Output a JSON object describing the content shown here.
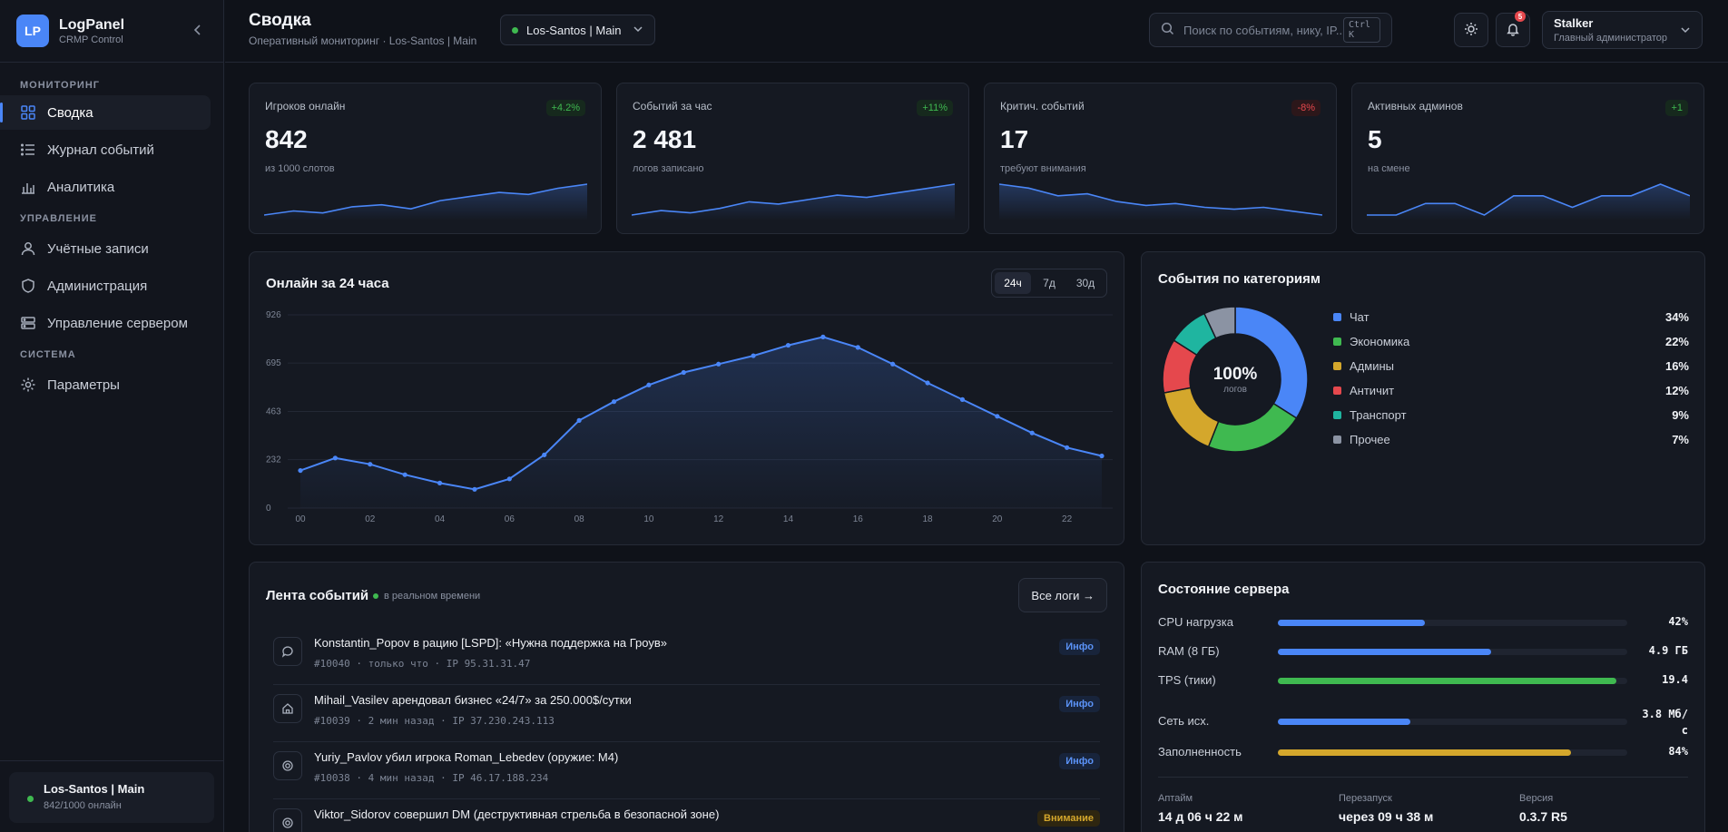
{
  "brand": {
    "logo": "LP",
    "name": "LogPanel",
    "sub": "CRMP Control"
  },
  "nav": {
    "sections": [
      {
        "title": "МОНИТОРИНГ",
        "items": [
          {
            "label": "Сводка",
            "icon": "grid-icon"
          },
          {
            "label": "Журнал событий",
            "icon": "list-icon"
          },
          {
            "label": "Аналитика",
            "icon": "bar-chart-icon"
          }
        ]
      },
      {
        "title": "УПРАВЛЕНИЕ",
        "items": [
          {
            "label": "Учётные записи",
            "icon": "user-icon"
          },
          {
            "label": "Администрация",
            "icon": "shield-icon"
          },
          {
            "label": "Управление сервером",
            "icon": "server-icon"
          }
        ]
      },
      {
        "title": "СИСТЕМА",
        "items": [
          {
            "label": "Параметры",
            "icon": "gear-icon"
          }
        ]
      }
    ]
  },
  "server_card": {
    "name": "Los-Santos | Main",
    "sub": "842/1000 онлайн"
  },
  "header": {
    "title": "Сводка",
    "subtitle": "Оперативный мониторинг · Los-Santos | Main",
    "server_select": "Los-Santos | Main",
    "search_placeholder": "Поиск по событиям, нику, IP...",
    "search_kbd": "Ctrl K",
    "notif_count": "5",
    "user": {
      "name": "Stalker",
      "role": "Главный администратор"
    }
  },
  "stats": [
    {
      "label": "Игроков онлайн",
      "value": "842",
      "sub": "из 1000 слотов",
      "change": "+4.2%",
      "trend": "up",
      "spark": [
        3,
        5,
        4,
        7,
        8,
        6,
        10,
        12,
        14,
        13,
        16,
        18
      ]
    },
    {
      "label": "Событий за час",
      "value": "2 481",
      "sub": "логов записано",
      "change": "+11%",
      "trend": "up",
      "spark": [
        3,
        5,
        4,
        6,
        9,
        8,
        10,
        12,
        11,
        13,
        15,
        17
      ]
    },
    {
      "label": "Критич. событий",
      "value": "17",
      "sub": "требуют внимания",
      "change": "-8%",
      "trend": "down",
      "spark": [
        18,
        16,
        12,
        13,
        9,
        7,
        8,
        6,
        5,
        6,
        4,
        2
      ]
    },
    {
      "label": "Активных админов",
      "value": "5",
      "sub": "на смене",
      "change": "+1",
      "trend": "up",
      "spark": [
        2,
        2,
        5,
        5,
        2,
        7,
        7,
        4,
        7,
        7,
        10,
        7
      ]
    }
  ],
  "online_chart": {
    "title": "Онлайн за 24 часа",
    "tabs": [
      "24ч",
      "7д",
      "30д"
    ],
    "active_tab": "24ч"
  },
  "chart_data": {
    "type": "area",
    "title": "Онлайн за 24 часа",
    "x": [
      0,
      1,
      2,
      3,
      4,
      5,
      6,
      7,
      8,
      9,
      10,
      11,
      12,
      13,
      14,
      15,
      16,
      17,
      18,
      19,
      20,
      21,
      22,
      23
    ],
    "xticks": [
      "00",
      "02",
      "04",
      "06",
      "08",
      "10",
      "12",
      "14",
      "16",
      "18",
      "20",
      "22"
    ],
    "series": [
      {
        "values": [
          180,
          240,
          210,
          160,
          120,
          90,
          140,
          255,
          420,
          510,
          590,
          650,
          690,
          730,
          780,
          820,
          770,
          690,
          600,
          520,
          440,
          360,
          290,
          250
        ]
      }
    ],
    "yticks": [
      0,
      232,
      463,
      695,
      926
    ],
    "ylim": [
      0,
      926
    ],
    "grid": true
  },
  "categories_chart": {
    "title": "События по категориям",
    "center_value": "100%",
    "center_label": "логов",
    "items": [
      {
        "label": "Чат",
        "pct": "34%",
        "value": 34,
        "color": "#4a86f7"
      },
      {
        "label": "Экономика",
        "pct": "22%",
        "value": 22,
        "color": "#3fb950"
      },
      {
        "label": "Админы",
        "pct": "16%",
        "value": 16,
        "color": "#d4a72c"
      },
      {
        "label": "Античит",
        "pct": "12%",
        "value": 12,
        "color": "#e5484d"
      },
      {
        "label": "Транспорт",
        "pct": "9%",
        "value": 9,
        "color": "#1fb5a0"
      },
      {
        "label": "Прочее",
        "pct": "7%",
        "value": 7,
        "color": "#8b93a3"
      }
    ]
  },
  "feed": {
    "title": "Лента событий",
    "live": "в реальном времени",
    "all_button": "Все логи →",
    "items": [
      {
        "icon": "chat-icon",
        "title": "Konstantin_Popov в рацию [LSPD]: «Нужна поддержка на Гроув»",
        "meta": "#10040 · только что · IP 95.31.31.47",
        "badge": "Инфо",
        "level": "info"
      },
      {
        "icon": "home-icon",
        "title": "Mihail_Vasilev арендовал бизнес «24/7» за 250.000$/сутки",
        "meta": "#10039 · 2 мин назад · IP 37.230.243.113",
        "badge": "Инфо",
        "level": "info"
      },
      {
        "icon": "target-icon",
        "title": "Yuriy_Pavlov убил игрока Roman_Lebedev (оружие: M4)",
        "meta": "#10038 · 4 мин назад · IP 46.17.188.234",
        "badge": "Инфо",
        "level": "info"
      },
      {
        "icon": "target-icon",
        "title": "Viktor_Sidorov совершил DM (деструктивная стрельба в безопасной зоне)",
        "meta": "",
        "badge": "Внимание",
        "level": "warn"
      }
    ]
  },
  "server_state": {
    "title": "Состояние сервера",
    "metrics": [
      {
        "label": "CPU нагрузка",
        "value": "42%",
        "fill": 0.42,
        "color": "#4a86f7"
      },
      {
        "label": "RAM (8 ГБ)",
        "value": "4.9 ГБ",
        "fill": 0.61,
        "color": "#4a86f7"
      },
      {
        "label": "TPS (тики)",
        "value": "19.4",
        "fill": 0.97,
        "color": "#3fb950"
      },
      {
        "label": "Сеть исх.",
        "value": "3.8 Мб/с",
        "fill": 0.38,
        "color": "#4a86f7"
      },
      {
        "label": "Заполненность",
        "value": "84%",
        "fill": 0.84,
        "color": "#d4a72c"
      }
    ],
    "info": [
      {
        "label": "Аптайм",
        "value": "14 д 06 ч 22 м"
      },
      {
        "label": "Перезапуск",
        "value": "через 09 ч 38 м"
      },
      {
        "label": "Версия",
        "value": "0.3.7 R5"
      }
    ]
  }
}
